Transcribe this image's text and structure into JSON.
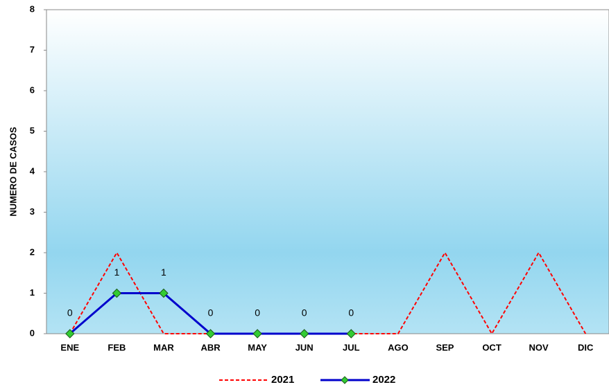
{
  "chart_data": {
    "type": "line",
    "y_label": "NUMERO DE CASOS",
    "categories": [
      "ENE",
      "FEB",
      "MAR",
      "ABR",
      "MAY",
      "JUN",
      "JUL",
      "AGO",
      "SEP",
      "OCT",
      "NOV",
      "DIC"
    ],
    "series": [
      {
        "name": "2021",
        "color": "#ff0000",
        "style": "dashed",
        "marker": false,
        "data_labels": false,
        "values": [
          0,
          2,
          0,
          0,
          0,
          0,
          0,
          0,
          2,
          0,
          2,
          0
        ]
      },
      {
        "name": "2022",
        "color": "#0000cc",
        "style": "solid",
        "marker": true,
        "marker_color": "#33cc33",
        "data_labels": true,
        "values": [
          0,
          1,
          1,
          0,
          0,
          0,
          0,
          null,
          null,
          null,
          null,
          null
        ]
      }
    ],
    "ylim": [
      0,
      8
    ],
    "yticks": [
      0,
      1,
      2,
      3,
      4,
      5,
      6,
      7,
      8
    ],
    "legend": "bottom"
  }
}
